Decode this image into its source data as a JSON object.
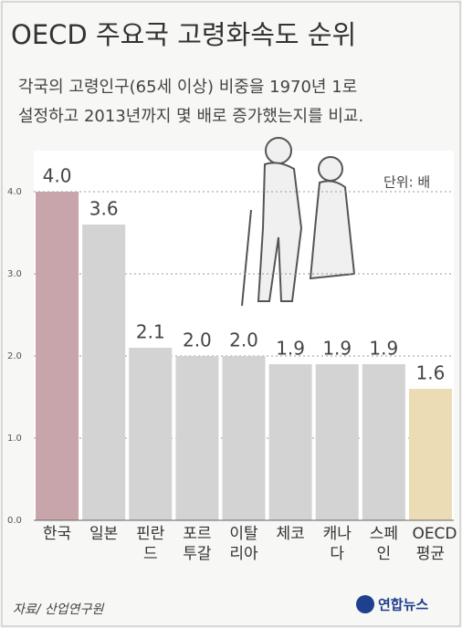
{
  "chart_data": {
    "type": "bar",
    "title": "OECD 주요국 고령화속도 순위",
    "subtitle": [
      "각국의 고령인구(65세 이상) 비중을 1970년 1로",
      "설정하고 2013년까지 몇 배로 증가했는지를 비교."
    ],
    "unit": "단위: 배",
    "categories": [
      "한국",
      "일본",
      "핀란드",
      "포르투갈",
      "이탈리아",
      "체코",
      "캐나다",
      "스페인",
      "OECD 평균"
    ],
    "values": [
      4.0,
      3.6,
      2.1,
      2.0,
      2.0,
      1.9,
      1.9,
      1.9,
      1.6
    ],
    "value_labels": [
      "4.0",
      "3.6",
      "2.1",
      "2.0",
      "2.0",
      "1.9",
      "1.9",
      "1.9",
      "1.6"
    ],
    "colors": [
      "#c8a4ab",
      "#d3d3d3",
      "#d3d3d3",
      "#d3d3d3",
      "#d3d3d3",
      "#d3d3d3",
      "#d3d3d3",
      "#d3d3d3",
      "#ecdcb6"
    ],
    "ylim": [
      0,
      4.5
    ],
    "yticks": [
      {
        "value": 0,
        "label": "0.0"
      },
      {
        "value": 1,
        "label": "1.0"
      },
      {
        "value": 2,
        "label": "2.0"
      },
      {
        "value": 3,
        "label": "3.0"
      },
      {
        "value": 4,
        "label": "4.0"
      }
    ],
    "grid": true,
    "source": "자료/ 산업연구원",
    "logo": "연합뉴스"
  }
}
